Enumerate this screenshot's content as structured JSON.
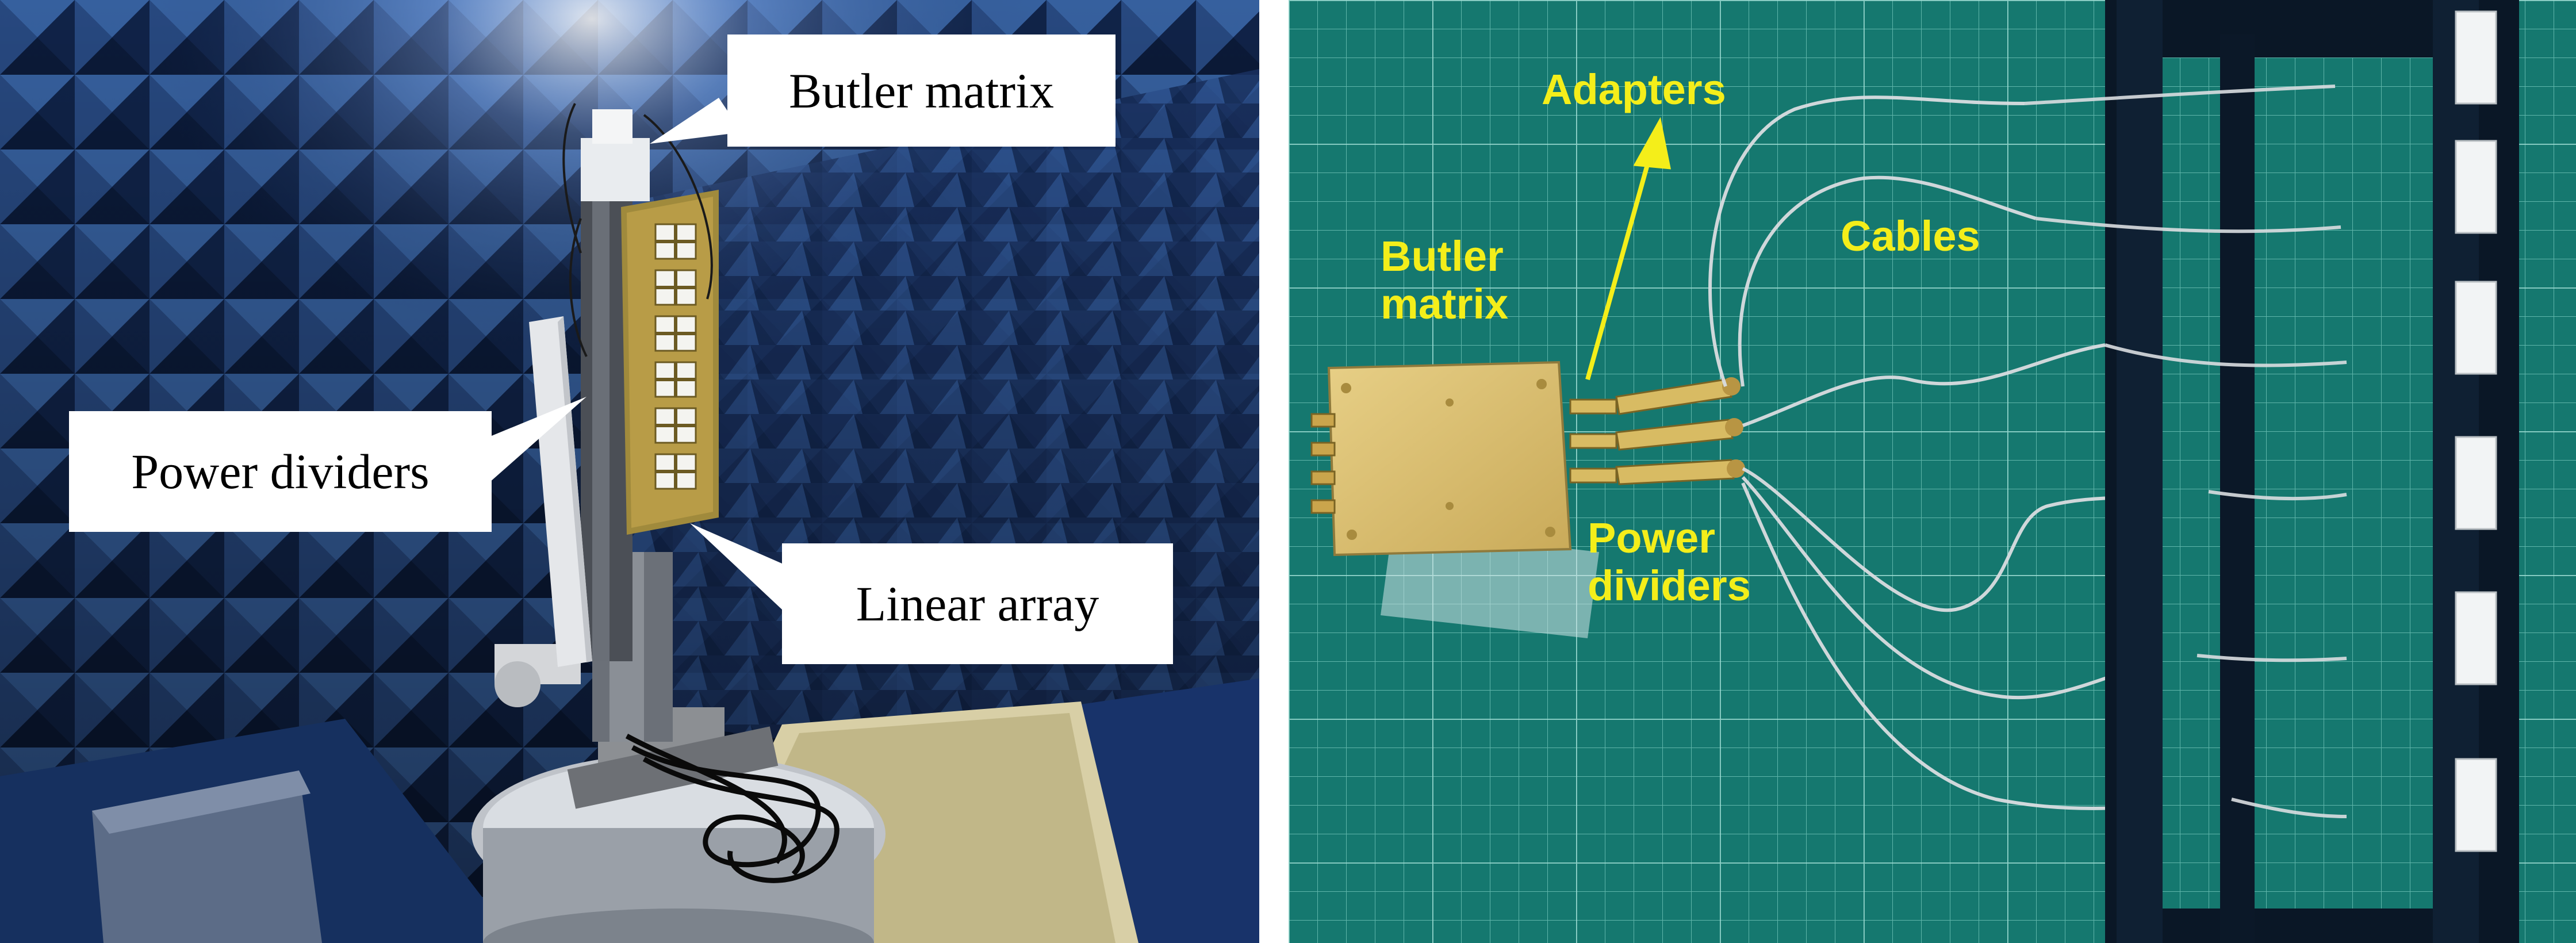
{
  "left_photo": {
    "scene": "anechoic-chamber",
    "callouts": {
      "butler_matrix": "Butler matrix",
      "power_dividers": "Power dividers",
      "linear_array": "Linear array"
    }
  },
  "right_photo": {
    "scene": "cutting-mat",
    "labels": {
      "adapters": "Adapters",
      "cables": "Cables",
      "butler_matrix_line1": "Butler",
      "butler_matrix_line2": "matrix",
      "power_dividers_line1": "Power",
      "power_dividers_line2": "dividers"
    }
  },
  "colors": {
    "chamber_blue": "#1c3566",
    "mat_green": "#157a72",
    "label_yellow": "#f4ee1a",
    "callout_bg": "#ffffff"
  }
}
